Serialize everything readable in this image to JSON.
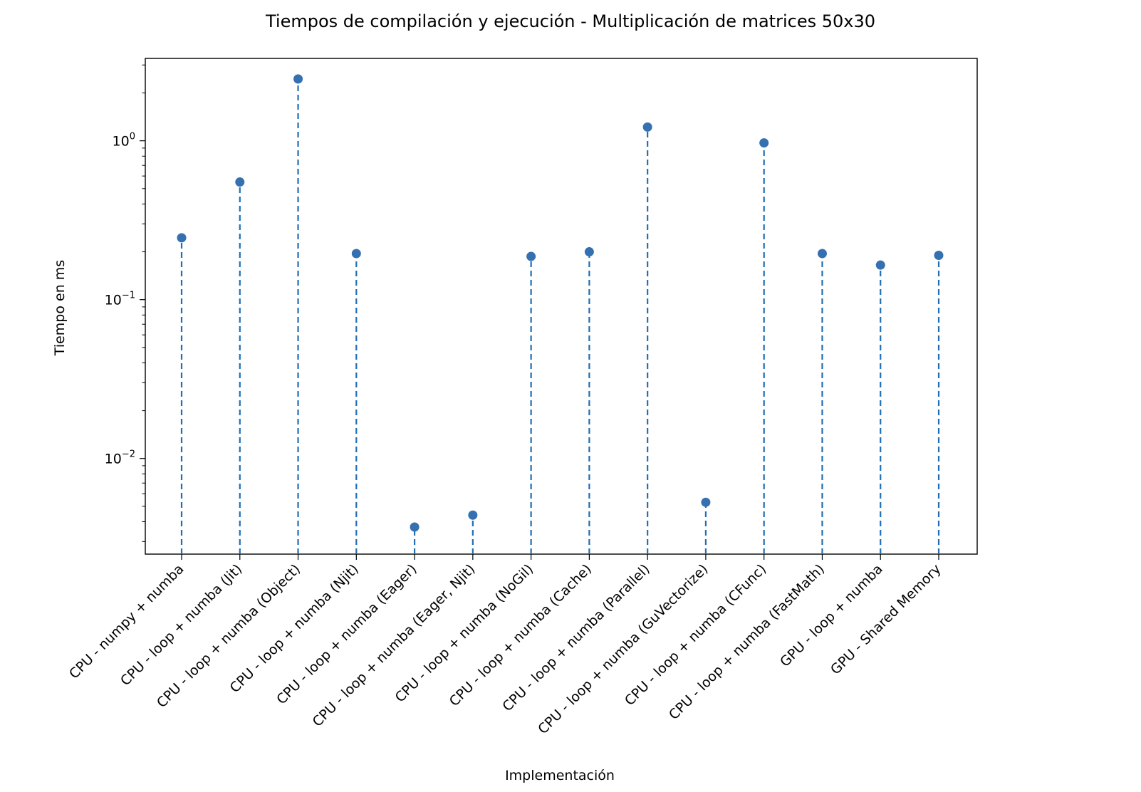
{
  "chart_data": {
    "type": "stem",
    "title": "Tiempos de compilación y ejecución - Multiplicación de matrices 50x30",
    "xlabel": "Implementación",
    "ylabel": "Tiempo en ms",
    "yscale": "log",
    "ylim": [
      0.0025,
      3.3
    ],
    "yticks": [
      {
        "value": 0.01,
        "base": "10",
        "exp": "−2"
      },
      {
        "value": 0.1,
        "base": "10",
        "exp": "−1"
      },
      {
        "value": 1,
        "base": "10",
        "exp": "0"
      }
    ],
    "marker_color": "#3570b0",
    "stem_color": "#1f6fb5",
    "categories": [
      "CPU - numpy + numba",
      "CPU - loop + numba (Jit)",
      "CPU - loop + numba (Object)",
      "CPU - loop + numba (Njit)",
      "CPU - loop + numba (Eager)",
      "CPU - loop + numba (Eager, Njit)",
      "CPU - loop + numba (NoGil)",
      "CPU - loop + numba (Cache)",
      "CPU - loop + numba (Parallel)",
      "CPU - loop + numba (GuVectorize)",
      "CPU - loop + numba (CFunc)",
      "CPU - loop + numba (FastMath)",
      "GPU - loop + numba",
      "GPU - Shared Memory"
    ],
    "values": [
      0.245,
      0.55,
      2.45,
      0.195,
      0.0037,
      0.0044,
      0.187,
      0.2,
      1.22,
      0.0053,
      0.97,
      0.195,
      0.165,
      0.19
    ],
    "grid": false,
    "legend": "none"
  }
}
